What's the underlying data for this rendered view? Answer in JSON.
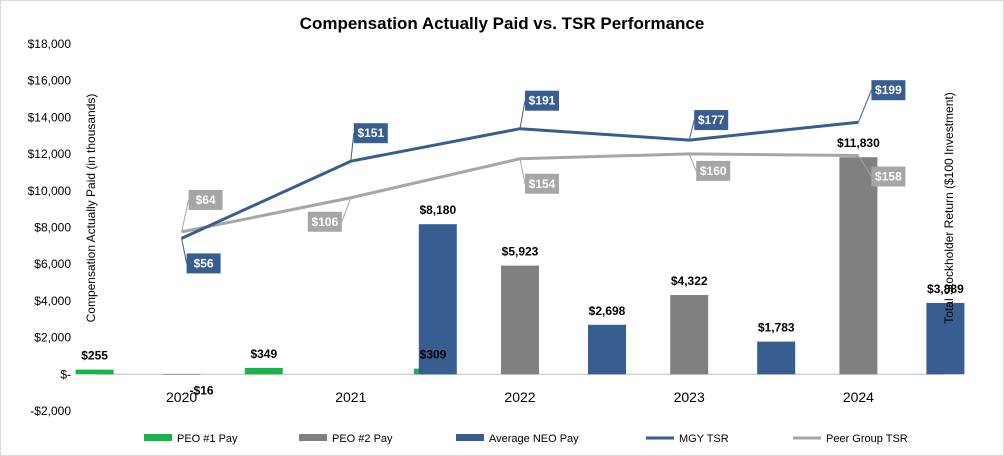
{
  "chart_data": {
    "type": "bar",
    "title": "Compensation Actually Paid vs. TSR Performance",
    "ylabel": "Compensation Actually Paid (in thousands)",
    "y2label": "Total Stockholder Return ($100 Investment)",
    "ylim": [
      -2000,
      18000
    ],
    "yticks": [
      -2000,
      0,
      2000,
      4000,
      6000,
      8000,
      10000,
      12000,
      14000,
      16000,
      18000
    ],
    "ytick_labels": [
      "-$2,000",
      "$-",
      "$2,000",
      "$4,000",
      "$6,000",
      "$8,000",
      "$10,000",
      "$12,000",
      "$14,000",
      "$16,000",
      "$18,000"
    ],
    "categories": [
      "2020",
      "2021",
      "2022",
      "2023",
      "2024"
    ],
    "series": [
      {
        "name": "PEO #1 Pay",
        "kind": "bar",
        "color": "#1ab24b",
        "values": [
          255,
          349,
          309,
          null,
          null
        ],
        "labels": [
          "$255",
          "$349",
          "$309",
          "",
          ""
        ]
      },
      {
        "name": "PEO #2 Pay",
        "kind": "bar",
        "color": "#808080",
        "values": [
          -16,
          null,
          5923,
          4322,
          11830
        ],
        "labels": [
          "-$16",
          "",
          "$5,923",
          "$4,322",
          "$11,830"
        ]
      },
      {
        "name": "Average NEO Pay",
        "kind": "bar",
        "color": "#375d91",
        "values": [
          null,
          8180,
          2698,
          1783,
          3889
        ],
        "labels": [
          "",
          "$8,180",
          "$2,698",
          "$1,783",
          "$3,889"
        ]
      },
      {
        "name": "MGY TSR",
        "kind": "line",
        "color": "#375d91",
        "values": [
          56,
          151,
          191,
          177,
          199
        ],
        "labels": [
          "$56",
          "$151",
          "$191",
          "$177",
          "$199"
        ]
      },
      {
        "name": "Peer Group TSR",
        "kind": "line",
        "color": "#a6a6a6",
        "values": [
          64,
          106,
          154,
          160,
          158
        ],
        "labels": [
          "$64",
          "$106",
          "$154",
          "$160",
          "$158"
        ]
      }
    ],
    "legend_position": "bottom"
  }
}
